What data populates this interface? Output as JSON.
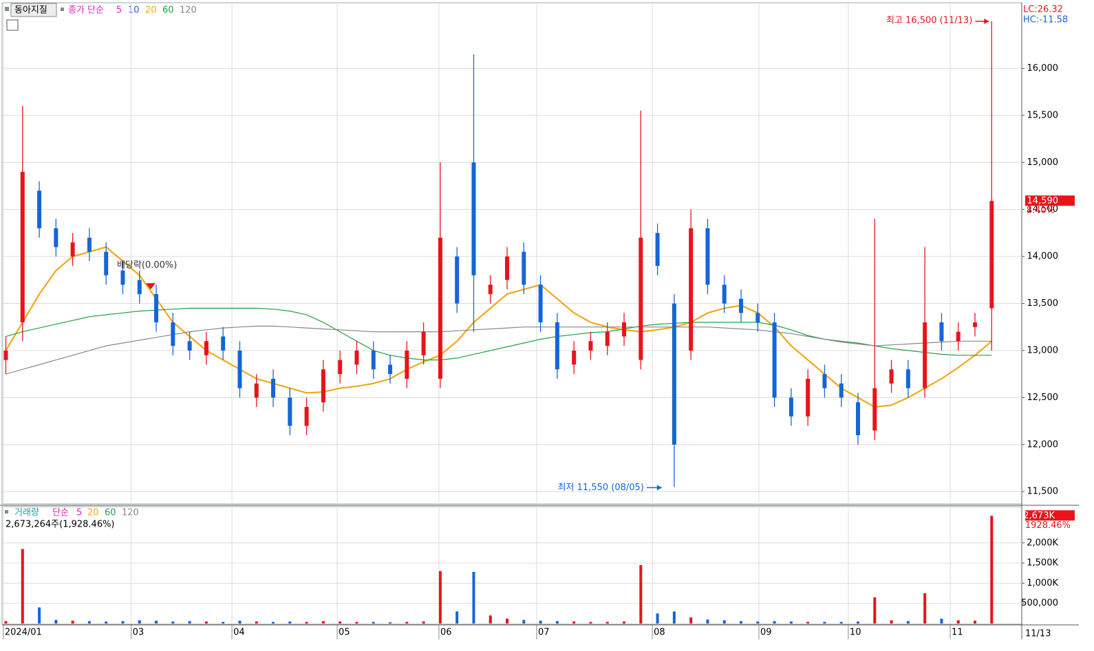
{
  "chart_data": {
    "type": "candlestick",
    "title": "동아지질",
    "legend_label": "종가 단순",
    "ma_legend": [
      "5",
      "10",
      "20",
      "60",
      "120"
    ],
    "annotations": {
      "high": "최고 16,500 (11/13)",
      "low": "최저 11,550 (08/05)",
      "dividend": "배당락(0.00%)"
    },
    "right_info": {
      "lc": "LC:26.32",
      "hc": "HC:-11.58",
      "last_price": "14,590",
      "change": "8.40%"
    },
    "x_end_label": "11/13",
    "xlim": [
      -0.35,
      60.8
    ],
    "xticks": [
      {
        "value": -0.15,
        "label": "2024/01"
      },
      {
        "value": 7.5,
        "label": "03"
      },
      {
        "value": 13.53,
        "label": "04"
      },
      {
        "value": 19.83,
        "label": "05"
      },
      {
        "value": 25.92,
        "label": "06"
      },
      {
        "value": 31.77,
        "label": "07"
      },
      {
        "value": 38.69,
        "label": "08"
      },
      {
        "value": 45.07,
        "label": "09"
      },
      {
        "value": 50.42,
        "label": "10"
      },
      {
        "value": 56.52,
        "label": "11"
      }
    ],
    "ylim": [
      11370,
      16690
    ],
    "yticks": [
      {
        "value": 11500,
        "label": "11,500"
      },
      {
        "value": 12000,
        "label": "12,000"
      },
      {
        "value": 12500,
        "label": "12,500"
      },
      {
        "value": 13000,
        "label": "13,000"
      },
      {
        "value": 13500,
        "label": "13,500"
      },
      {
        "value": 14000,
        "label": "14,000"
      },
      {
        "value": 14500,
        "label": "14,500"
      },
      {
        "value": 15000,
        "label": "15,000"
      },
      {
        "value": 15500,
        "label": "15,500"
      },
      {
        "value": 16000,
        "label": "16,000"
      }
    ],
    "grid": true,
    "up_color": "#e8141a",
    "down_color": "#1565d8",
    "open": [
      12900,
      13300,
      14700,
      14300,
      14000,
      14200,
      14050,
      13850,
      13750,
      13600,
      13300,
      13100,
      12950,
      13150,
      13000,
      12500,
      12700,
      12500,
      12200,
      12450,
      12750,
      12850,
      13000,
      12850,
      12700,
      12950,
      12700,
      14000,
      15000,
      13600,
      13750,
      14050,
      13700,
      13300,
      12850,
      13000,
      13050,
      13150,
      12900,
      14250,
      13500,
      13000,
      14300,
      13700,
      13550,
      13400,
      13300,
      12500,
      12300,
      12750,
      12650,
      12450,
      12150,
      12650,
      12800,
      12600,
      13300,
      13100,
      13250,
      13450
    ],
    "high": [
      13150,
      15600,
      14800,
      14400,
      14250,
      14300,
      14150,
      13950,
      13850,
      13700,
      13400,
      13200,
      13200,
      13250,
      13100,
      12750,
      12800,
      12600,
      12500,
      12900,
      13000,
      13100,
      13100,
      12950,
      13100,
      13300,
      15000,
      14100,
      16150,
      13800,
      14100,
      14150,
      13800,
      13400,
      13100,
      13200,
      13300,
      13400,
      15550,
      14350,
      13600,
      14500,
      14400,
      13800,
      13650,
      13500,
      13400,
      12600,
      12800,
      12850,
      12750,
      12550,
      14400,
      12900,
      12900,
      14100,
      13400,
      13300,
      13400,
      16500
    ],
    "low": [
      12750,
      13100,
      14200,
      14000,
      13900,
      13950,
      13700,
      13600,
      13500,
      13200,
      12950,
      12900,
      12850,
      12900,
      12500,
      12400,
      12400,
      12100,
      12100,
      12350,
      12650,
      12750,
      12700,
      12650,
      12600,
      12850,
      12600,
      13400,
      13200,
      13500,
      13650,
      13600,
      13200,
      12700,
      12750,
      12900,
      12950,
      13050,
      12800,
      13800,
      11550,
      12900,
      13600,
      13400,
      13300,
      13200,
      12400,
      12200,
      12200,
      12500,
      12400,
      12000,
      12050,
      12550,
      12500,
      12500,
      13000,
      13000,
      13150,
      13000
    ],
    "close": [
      13000,
      14900,
      14300,
      14100,
      14150,
      14050,
      13800,
      13700,
      13600,
      13300,
      13050,
      13000,
      13100,
      13000,
      12600,
      12650,
      12500,
      12200,
      12400,
      12800,
      12900,
      13000,
      12800,
      12750,
      13000,
      13200,
      14200,
      13500,
      13800,
      13700,
      14000,
      13700,
      13300,
      12800,
      13000,
      13100,
      13200,
      13300,
      14200,
      13900,
      12000,
      14300,
      13700,
      13500,
      13400,
      13300,
      12500,
      12300,
      12700,
      12600,
      12500,
      12100,
      12600,
      12800,
      12600,
      13300,
      13100,
      13200,
      13300,
      14590
    ],
    "series": [
      {
        "name": "20",
        "color": "#f0a818",
        "values": [
          13000,
          13300,
          13600,
          13850,
          14000,
          14050,
          14100,
          13950,
          13800,
          13550,
          13300,
          13150,
          13000,
          12900,
          12800,
          12700,
          12650,
          12600,
          12550,
          12560,
          12600,
          12620,
          12650,
          12700,
          12800,
          12880,
          12950,
          13100,
          13300,
          13450,
          13600,
          13650,
          13700,
          13550,
          13400,
          13300,
          13250,
          13220,
          13200,
          13220,
          13250,
          13300,
          13400,
          13450,
          13480,
          13400,
          13250,
          13050,
          12900,
          12750,
          12600,
          12500,
          12400,
          12420,
          12500,
          12600,
          12700,
          12820,
          12950,
          13100
        ]
      },
      {
        "name": "60",
        "color": "#20a040",
        "values": [
          13150,
          13200,
          13240,
          13280,
          13320,
          13360,
          13380,
          13400,
          13420,
          13430,
          13440,
          13450,
          13450,
          13450,
          13450,
          13450,
          13440,
          13420,
          13380,
          13300,
          13200,
          13100,
          13000,
          12950,
          12920,
          12900,
          12900,
          12920,
          12960,
          13000,
          13040,
          13080,
          13120,
          13150,
          13170,
          13190,
          13200,
          13230,
          13260,
          13280,
          13290,
          13300,
          13300,
          13300,
          13300,
          13300,
          13270,
          13220,
          13160,
          13120,
          13100,
          13080,
          13050,
          13020,
          13000,
          12980,
          12960,
          12950,
          12950,
          12950
        ]
      },
      {
        "name": "120",
        "color": "#888888",
        "values": [
          12750,
          12800,
          12850,
          12900,
          12950,
          13000,
          13050,
          13080,
          13110,
          13140,
          13170,
          13200,
          13220,
          13240,
          13250,
          13260,
          13260,
          13250,
          13240,
          13230,
          13220,
          13210,
          13200,
          13200,
          13200,
          13200,
          13200,
          13210,
          13220,
          13230,
          13240,
          13250,
          13250,
          13250,
          13250,
          13250,
          13250,
          13250,
          13250,
          13250,
          13250,
          13250,
          13250,
          13240,
          13230,
          13220,
          13200,
          13180,
          13150,
          13120,
          13090,
          13070,
          13050,
          13060,
          13070,
          13080,
          13090,
          13100,
          13100,
          13100
        ]
      }
    ],
    "volume_panel": {
      "legend_label": "거래량",
      "legend_kind": "단순",
      "ma_legend": [
        "5",
        "20",
        "60",
        "120"
      ],
      "info": "2,673,264주(1,928.46%)",
      "last_label": "2,673K",
      "last_change": "1928.46%",
      "ylim": [
        0,
        2900000
      ],
      "yticks": [
        {
          "value": 500000,
          "label": "500,000"
        },
        {
          "value": 1000000,
          "label": "1,000K"
        },
        {
          "value": 1500000,
          "label": "1,500K"
        },
        {
          "value": 2000000,
          "label": "2,000K"
        }
      ],
      "values": [
        60000,
        1850000,
        400000,
        90000,
        70000,
        60000,
        50000,
        60000,
        80000,
        70000,
        50000,
        60000,
        50000,
        40000,
        70000,
        50000,
        40000,
        50000,
        40000,
        60000,
        50000,
        40000,
        40000,
        30000,
        40000,
        50000,
        1300000,
        300000,
        1280000,
        200000,
        120000,
        90000,
        70000,
        60000,
        50000,
        40000,
        40000,
        50000,
        1450000,
        250000,
        300000,
        150000,
        100000,
        80000,
        60000,
        50000,
        60000,
        50000,
        40000,
        40000,
        40000,
        50000,
        650000,
        80000,
        60000,
        750000,
        120000,
        80000,
        70000,
        2673264
      ]
    }
  }
}
